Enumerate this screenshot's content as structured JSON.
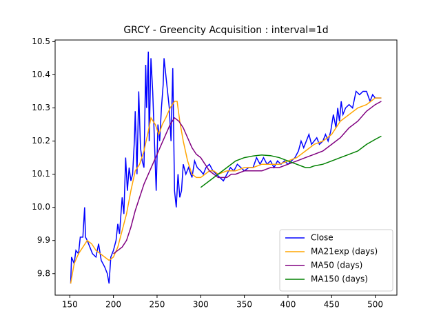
{
  "chart_data": {
    "type": "line",
    "title": "GRCY - Greencity Acquisition : interval=1d",
    "xlim": [
      133.2,
      524.8
    ],
    "ylim": [
      9.735,
      10.505
    ],
    "xticks": [
      150,
      200,
      250,
      300,
      350,
      400,
      450,
      500
    ],
    "yticks": [
      9.8,
      9.9,
      {
        "value": 10,
        "label": "10.0"
      },
      10.1,
      10.2,
      10.3,
      10.4,
      10.5
    ],
    "legend": "lower right",
    "series": [
      {
        "name": "Close",
        "color": "#0000ff",
        "x": [
          151,
          152,
          155,
          157,
          160,
          162,
          165,
          167,
          168,
          170,
          173,
          176,
          180,
          183,
          186,
          190,
          193,
          195,
          197,
          200,
          203,
          205,
          207,
          210,
          212,
          214,
          216,
          218,
          220,
          222,
          224,
          225,
          227,
          229,
          231,
          233,
          235,
          237,
          238,
          240,
          241,
          243,
          245,
          247,
          249,
          251,
          253,
          255,
          257,
          258,
          260,
          262,
          264,
          266,
          268,
          270,
          272,
          274,
          276,
          278,
          280,
          283,
          286,
          290,
          293,
          296,
          300,
          303,
          306,
          310,
          314,
          318,
          322,
          326,
          330,
          334,
          338,
          342,
          346,
          350,
          355,
          360,
          364,
          368,
          372,
          376,
          380,
          384,
          388,
          392,
          396,
          400,
          404,
          408,
          412,
          415,
          418,
          421,
          424,
          427,
          430,
          433,
          436,
          440,
          443,
          446,
          449,
          452,
          455,
          457,
          459,
          461,
          463,
          466,
          470,
          474,
          478,
          482,
          486,
          490,
          494,
          497,
          500,
          504,
          507
        ],
        "values": [
          9.77,
          9.85,
          9.83,
          9.87,
          9.86,
          9.91,
          9.91,
          10.0,
          9.91,
          9.9,
          9.88,
          9.86,
          9.85,
          9.89,
          9.84,
          9.82,
          9.8,
          9.77,
          9.85,
          9.87,
          9.9,
          9.95,
          9.92,
          10.03,
          9.98,
          10.15,
          10.05,
          10.12,
          10.08,
          10.1,
          10.2,
          10.29,
          10.1,
          10.35,
          10.18,
          10.14,
          10.12,
          10.43,
          10.3,
          10.47,
          10.2,
          10.45,
          10.35,
          10.2,
          10.05,
          10.25,
          10.2,
          10.3,
          10.37,
          10.45,
          10.4,
          10.35,
          10.3,
          10.2,
          10.42,
          10.05,
          10.0,
          10.1,
          10.03,
          10.05,
          10.13,
          10.1,
          10.12,
          10.09,
          10.14,
          10.12,
          10.11,
          10.1,
          10.12,
          10.13,
          10.11,
          10.1,
          10.09,
          10.08,
          10.1,
          10.12,
          10.11,
          10.13,
          10.12,
          10.11,
          10.12,
          10.12,
          10.15,
          10.13,
          10.15,
          10.13,
          10.14,
          10.12,
          10.14,
          10.13,
          10.14,
          10.13,
          10.14,
          10.15,
          10.17,
          10.2,
          10.18,
          10.2,
          10.22,
          10.19,
          10.2,
          10.21,
          10.19,
          10.2,
          10.22,
          10.2,
          10.23,
          10.28,
          10.24,
          10.3,
          10.26,
          10.32,
          10.28,
          10.3,
          10.31,
          10.3,
          10.35,
          10.34,
          10.35,
          10.35,
          10.32,
          10.34,
          10.33,
          10.33,
          10.33
        ]
      },
      {
        "name": "MA21exp (days)",
        "color": "#ffa500",
        "x": [
          151,
          155,
          160,
          165,
          170,
          175,
          180,
          185,
          190,
          195,
          200,
          205,
          210,
          215,
          220,
          225,
          230,
          235,
          240,
          243,
          248,
          252,
          256,
          260,
          265,
          270,
          273,
          276,
          280,
          285,
          290,
          295,
          300,
          305,
          310,
          315,
          320,
          330,
          340,
          350,
          360,
          370,
          380,
          390,
          400,
          410,
          420,
          430,
          440,
          450,
          460,
          470,
          480,
          490,
          495,
          500,
          507
        ],
        "values": [
          9.77,
          9.83,
          9.86,
          9.88,
          9.9,
          9.89,
          9.87,
          9.86,
          9.85,
          9.84,
          9.85,
          9.88,
          9.93,
          9.98,
          10.05,
          10.11,
          10.13,
          10.17,
          10.23,
          10.27,
          10.25,
          10.22,
          10.25,
          10.27,
          10.3,
          10.32,
          10.32,
          10.26,
          10.2,
          10.14,
          10.1,
          10.09,
          10.09,
          10.1,
          10.11,
          10.11,
          10.1,
          10.11,
          10.11,
          10.12,
          10.12,
          10.13,
          10.13,
          10.13,
          10.14,
          10.15,
          10.17,
          10.19,
          10.2,
          10.22,
          10.26,
          10.28,
          10.3,
          10.31,
          10.32,
          10.33,
          10.33
        ]
      },
      {
        "name": "MA50 (days)",
        "color": "#800080",
        "x": [
          200,
          210,
          215,
          220,
          225,
          230,
          235,
          240,
          245,
          250,
          255,
          260,
          265,
          270,
          275,
          280,
          285,
          290,
          295,
          300,
          305,
          310,
          315,
          320,
          325,
          330,
          335,
          340,
          350,
          360,
          370,
          380,
          390,
          400,
          410,
          420,
          430,
          440,
          450,
          460,
          470,
          480,
          490,
          500,
          507
        ],
        "values": [
          9.86,
          9.88,
          9.9,
          9.94,
          9.99,
          10.03,
          10.07,
          10.1,
          10.13,
          10.16,
          10.19,
          10.22,
          10.25,
          10.27,
          10.26,
          10.24,
          10.21,
          10.18,
          10.16,
          10.15,
          10.13,
          10.11,
          10.1,
          10.09,
          10.09,
          10.09,
          10.1,
          10.1,
          10.11,
          10.11,
          10.11,
          10.12,
          10.12,
          10.13,
          10.14,
          10.15,
          10.16,
          10.17,
          10.19,
          10.21,
          10.24,
          10.26,
          10.29,
          10.31,
          10.32
        ]
      },
      {
        "name": "MA150 (days)",
        "color": "#008000",
        "x": [
          300,
          310,
          320,
          330,
          340,
          350,
          360,
          370,
          380,
          390,
          400,
          410,
          420,
          425,
          430,
          440,
          450,
          460,
          470,
          480,
          490,
          500,
          507
        ],
        "values": [
          10.06,
          10.08,
          10.1,
          10.12,
          10.14,
          10.15,
          10.155,
          10.158,
          10.156,
          10.15,
          10.14,
          10.13,
          10.12,
          10.12,
          10.125,
          10.13,
          10.14,
          10.15,
          10.16,
          10.17,
          10.19,
          10.205,
          10.215
        ]
      }
    ]
  }
}
